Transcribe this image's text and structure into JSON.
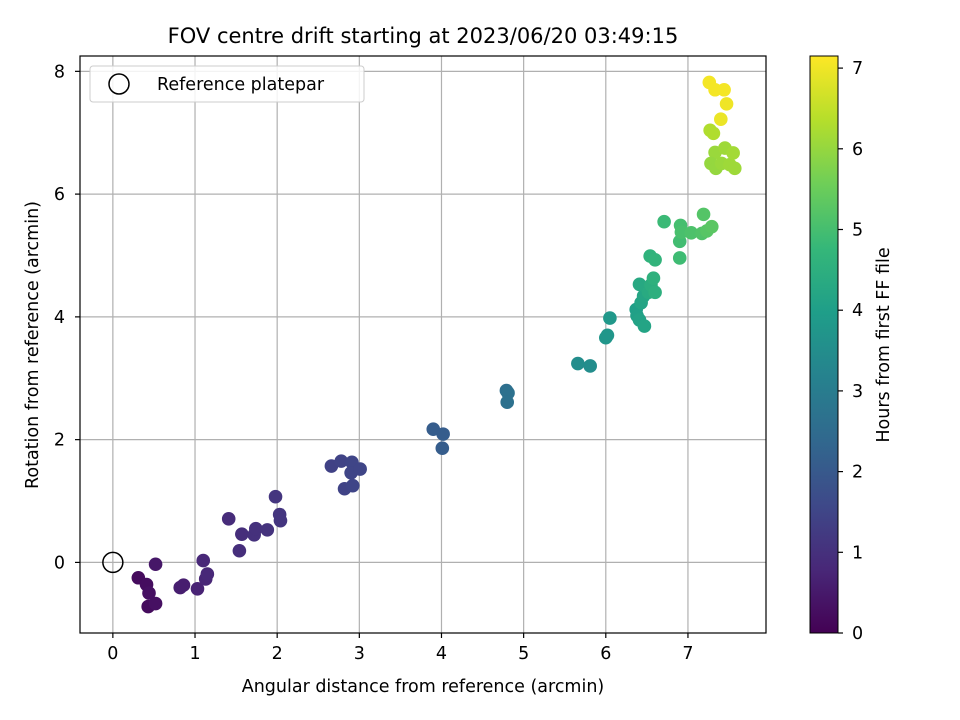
{
  "chart_data": {
    "type": "scatter",
    "title": "FOV centre drift starting at 2023/06/20 03:49:15",
    "xlabel": "Angular distance from reference (arcmin)",
    "ylabel": "Rotation from reference (arcmin)",
    "xlim": [
      -0.4,
      7.95
    ],
    "ylim": [
      -1.15,
      8.25
    ],
    "xticks": [
      "0",
      "1",
      "2",
      "3",
      "4",
      "5",
      "6",
      "7"
    ],
    "yticks": [
      "0",
      "2",
      "4",
      "6",
      "8"
    ],
    "grid": true,
    "legend": {
      "position": "top-left",
      "entries": [
        "Reference platepar"
      ]
    },
    "reference_point": {
      "x": 0,
      "y": 0,
      "label": "Reference platepar"
    },
    "colorbar": {
      "label": "Hours from first FF file",
      "colormap": "viridis",
      "range": [
        0,
        7.15
      ],
      "ticks": [
        "0",
        "1",
        "2",
        "3",
        "4",
        "5",
        "6",
        "7"
      ]
    },
    "points": [
      {
        "x": 0.31,
        "y": -0.25,
        "h": 0.2
      },
      {
        "x": 0.41,
        "y": -0.36,
        "h": 0.25
      },
      {
        "x": 0.44,
        "y": -0.5,
        "h": 0.3
      },
      {
        "x": 0.43,
        "y": -0.72,
        "h": 0.2
      },
      {
        "x": 0.52,
        "y": -0.67,
        "h": 0.3
      },
      {
        "x": 0.52,
        "y": -0.03,
        "h": 0.45
      },
      {
        "x": 0.82,
        "y": -0.41,
        "h": 0.6
      },
      {
        "x": 0.86,
        "y": -0.37,
        "h": 0.6
      },
      {
        "x": 1.03,
        "y": -0.43,
        "h": 0.7
      },
      {
        "x": 1.13,
        "y": -0.27,
        "h": 0.75
      },
      {
        "x": 1.15,
        "y": -0.19,
        "h": 0.8
      },
      {
        "x": 1.1,
        "y": 0.03,
        "h": 0.8
      },
      {
        "x": 1.41,
        "y": 0.71,
        "h": 0.9
      },
      {
        "x": 1.54,
        "y": 0.19,
        "h": 0.95
      },
      {
        "x": 1.57,
        "y": 0.46,
        "h": 0.95
      },
      {
        "x": 1.72,
        "y": 0.45,
        "h": 1.0
      },
      {
        "x": 1.74,
        "y": 0.55,
        "h": 1.0
      },
      {
        "x": 1.88,
        "y": 0.53,
        "h": 1.05
      },
      {
        "x": 1.98,
        "y": 1.07,
        "h": 1.1
      },
      {
        "x": 2.03,
        "y": 0.78,
        "h": 1.1
      },
      {
        "x": 2.04,
        "y": 0.68,
        "h": 1.1
      },
      {
        "x": 2.66,
        "y": 1.57,
        "h": 1.4
      },
      {
        "x": 2.78,
        "y": 1.65,
        "h": 1.45
      },
      {
        "x": 2.82,
        "y": 1.2,
        "h": 1.45
      },
      {
        "x": 2.91,
        "y": 1.63,
        "h": 1.5
      },
      {
        "x": 2.9,
        "y": 1.46,
        "h": 1.5
      },
      {
        "x": 2.92,
        "y": 1.25,
        "h": 1.5
      },
      {
        "x": 3.01,
        "y": 1.52,
        "h": 1.5
      },
      {
        "x": 3.9,
        "y": 2.17,
        "h": 2.1
      },
      {
        "x": 4.02,
        "y": 2.09,
        "h": 2.1
      },
      {
        "x": 4.01,
        "y": 1.86,
        "h": 2.1
      },
      {
        "x": 4.79,
        "y": 2.8,
        "h": 2.6
      },
      {
        "x": 4.81,
        "y": 2.76,
        "h": 2.65
      },
      {
        "x": 4.8,
        "y": 2.61,
        "h": 2.65
      },
      {
        "x": 5.66,
        "y": 3.24,
        "h": 3.5
      },
      {
        "x": 5.81,
        "y": 3.2,
        "h": 3.5
      },
      {
        "x": 6.0,
        "y": 3.66,
        "h": 3.75
      },
      {
        "x": 6.02,
        "y": 3.7,
        "h": 3.75
      },
      {
        "x": 6.05,
        "y": 3.98,
        "h": 3.8
      },
      {
        "x": 6.37,
        "y": 4.12,
        "h": 4.0
      },
      {
        "x": 6.38,
        "y": 4.02,
        "h": 4.05
      },
      {
        "x": 6.41,
        "y": 3.95,
        "h": 4.1
      },
      {
        "x": 6.43,
        "y": 4.23,
        "h": 4.15
      },
      {
        "x": 6.47,
        "y": 3.85,
        "h": 4.15
      },
      {
        "x": 6.46,
        "y": 4.34,
        "h": 4.2
      },
      {
        "x": 6.5,
        "y": 4.47,
        "h": 4.3
      },
      {
        "x": 6.41,
        "y": 4.53,
        "h": 4.3
      },
      {
        "x": 6.52,
        "y": 4.4,
        "h": 4.35
      },
      {
        "x": 6.55,
        "y": 4.52,
        "h": 4.45
      },
      {
        "x": 6.6,
        "y": 4.4,
        "h": 4.5
      },
      {
        "x": 6.58,
        "y": 4.63,
        "h": 4.55
      },
      {
        "x": 6.54,
        "y": 4.99,
        "h": 4.6
      },
      {
        "x": 6.6,
        "y": 4.93,
        "h": 4.65
      },
      {
        "x": 6.71,
        "y": 5.55,
        "h": 4.85
      },
      {
        "x": 6.9,
        "y": 4.96,
        "h": 4.9
      },
      {
        "x": 6.9,
        "y": 5.23,
        "h": 4.95
      },
      {
        "x": 6.91,
        "y": 5.49,
        "h": 5.0
      },
      {
        "x": 6.92,
        "y": 5.38,
        "h": 5.05
      },
      {
        "x": 7.04,
        "y": 5.37,
        "h": 5.1
      },
      {
        "x": 7.17,
        "y": 5.36,
        "h": 5.15
      },
      {
        "x": 7.19,
        "y": 5.67,
        "h": 5.2
      },
      {
        "x": 7.23,
        "y": 5.4,
        "h": 5.25
      },
      {
        "x": 7.29,
        "y": 5.47,
        "h": 5.3
      },
      {
        "x": 7.27,
        "y": 7.04,
        "h": 6.3
      },
      {
        "x": 7.31,
        "y": 6.99,
        "h": 6.3
      },
      {
        "x": 7.33,
        "y": 6.68,
        "h": 6.05
      },
      {
        "x": 7.28,
        "y": 6.5,
        "h": 6.0
      },
      {
        "x": 7.34,
        "y": 6.42,
        "h": 6.0
      },
      {
        "x": 7.41,
        "y": 6.5,
        "h": 6.05
      },
      {
        "x": 7.45,
        "y": 6.75,
        "h": 6.1
      },
      {
        "x": 7.51,
        "y": 6.48,
        "h": 6.1
      },
      {
        "x": 7.55,
        "y": 6.67,
        "h": 6.15
      },
      {
        "x": 7.57,
        "y": 6.42,
        "h": 6.1
      },
      {
        "x": 7.26,
        "y": 7.82,
        "h": 7.05
      },
      {
        "x": 7.33,
        "y": 7.7,
        "h": 7.05
      },
      {
        "x": 7.44,
        "y": 7.7,
        "h": 7.05
      },
      {
        "x": 7.47,
        "y": 7.47,
        "h": 7.0
      },
      {
        "x": 7.4,
        "y": 7.22,
        "h": 6.95
      }
    ]
  }
}
